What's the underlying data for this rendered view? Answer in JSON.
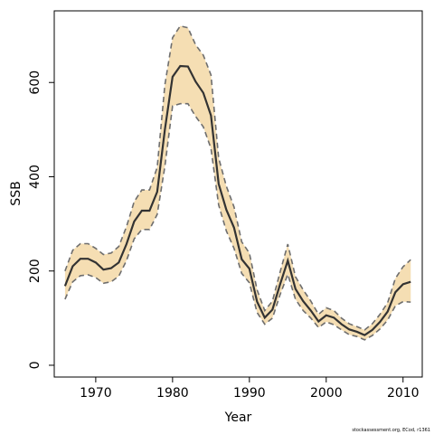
{
  "chart_data": {
    "type": "area",
    "title": "",
    "xlabel": "Year",
    "ylabel": "SSB",
    "xlim": [
      1964.6,
      2012.5
    ],
    "ylim": [
      -25,
      752
    ],
    "x_ticks": [
      1970,
      1980,
      1990,
      2000,
      2010
    ],
    "y_ticks": [
      0,
      200,
      400,
      600
    ],
    "grid": false,
    "legend": "none",
    "colors": {
      "band": "#f5deb3",
      "bound_line": "#6e6e6e",
      "estimate_line": "#333333",
      "axis": "#000000"
    },
    "x": [
      1966,
      1967,
      1968,
      1969,
      1970,
      1971,
      1972,
      1973,
      1974,
      1975,
      1976,
      1977,
      1978,
      1979,
      1980,
      1981,
      1982,
      1983,
      1984,
      1985,
      1986,
      1987,
      1988,
      1989,
      1990,
      1991,
      1992,
      1993,
      1994,
      1995,
      1996,
      1997,
      1998,
      1999,
      2000,
      2001,
      2002,
      2003,
      2004,
      2005,
      2006,
      2007,
      2008,
      2009,
      2010,
      2011
    ],
    "series": [
      {
        "name": "",
        "role": "estimate",
        "values": [
          168,
          210,
          226,
          226,
          218,
          203,
          206,
          218,
          257,
          305,
          328,
          328,
          368,
          500,
          612,
          635,
          634,
          602,
          578,
          530,
          385,
          330,
          292,
          225,
          205,
          135,
          101,
          118,
          172,
          222,
          162,
          136,
          116,
          93,
          106,
          101,
          87,
          76,
          71,
          64,
          75,
          92,
          114,
          155,
          172,
          177
        ]
      },
      {
        "name": "",
        "role": "upper",
        "values": [
          200,
          244,
          258,
          258,
          248,
          235,
          238,
          252,
          294,
          347,
          372,
          372,
          420,
          595,
          695,
          720,
          716,
          680,
          658,
          616,
          440,
          380,
          336,
          262,
          238,
          160,
          116,
          136,
          198,
          257,
          188,
          160,
          136,
          108,
          122,
          116,
          100,
          88,
          82,
          75,
          88,
          108,
          133,
          184,
          209,
          224
        ]
      },
      {
        "name": "",
        "role": "lower",
        "values": [
          140,
          177,
          190,
          192,
          186,
          174,
          177,
          189,
          222,
          268,
          288,
          288,
          320,
          422,
          550,
          555,
          555,
          528,
          506,
          460,
          340,
          285,
          248,
          195,
          175,
          112,
          87,
          100,
          150,
          193,
          140,
          116,
          100,
          80,
          92,
          86,
          75,
          65,
          61,
          54,
          63,
          77,
          96,
          126,
          135,
          134
        ]
      }
    ],
    "credit": "stockassessment.org, ECod, r1361"
  }
}
